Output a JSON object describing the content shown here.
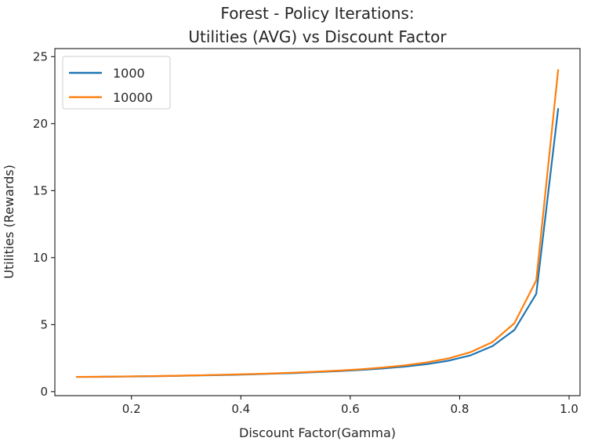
{
  "chart_data": {
    "type": "line",
    "title_line1": "Forest - Policy Iterations:",
    "title_line2": "Utilities (AVG) vs Discount Factor",
    "xlabel": "Discount Factor(Gamma)",
    "ylabel": "Utilities (Rewards)",
    "xlim": [
      0.06,
      1.02
    ],
    "ylim": [
      -0.3,
      25.6
    ],
    "xticks": [
      0.2,
      0.4,
      0.6,
      0.8,
      1.0
    ],
    "xtick_labels": [
      "0.2",
      "0.4",
      "0.6",
      "0.8",
      "1.0"
    ],
    "yticks": [
      0,
      5,
      10,
      15,
      20,
      25
    ],
    "ytick_labels": [
      "0",
      "5",
      "10",
      "15",
      "20",
      "25"
    ],
    "grid": false,
    "legend_position": "top-left",
    "x": [
      0.1,
      0.14,
      0.18,
      0.22,
      0.26,
      0.3,
      0.34,
      0.38,
      0.42,
      0.46,
      0.5,
      0.54,
      0.58,
      0.62,
      0.66,
      0.7,
      0.74,
      0.78,
      0.82,
      0.86,
      0.9,
      0.94,
      0.98
    ],
    "series": [
      {
        "name": "1000",
        "color": "#1f77b4",
        "values": [
          1.1,
          1.1,
          1.12,
          1.14,
          1.16,
          1.19,
          1.22,
          1.25,
          1.29,
          1.34,
          1.39,
          1.46,
          1.53,
          1.62,
          1.73,
          1.87,
          2.05,
          2.31,
          2.71,
          3.4,
          4.6,
          7.3,
          21.1
        ]
      },
      {
        "name": "10000",
        "color": "#ff7f0e",
        "values": [
          1.1,
          1.11,
          1.13,
          1.15,
          1.17,
          1.2,
          1.23,
          1.27,
          1.31,
          1.36,
          1.42,
          1.49,
          1.57,
          1.67,
          1.8,
          1.96,
          2.18,
          2.48,
          2.95,
          3.7,
          5.1,
          8.3,
          24.0
        ]
      }
    ]
  }
}
